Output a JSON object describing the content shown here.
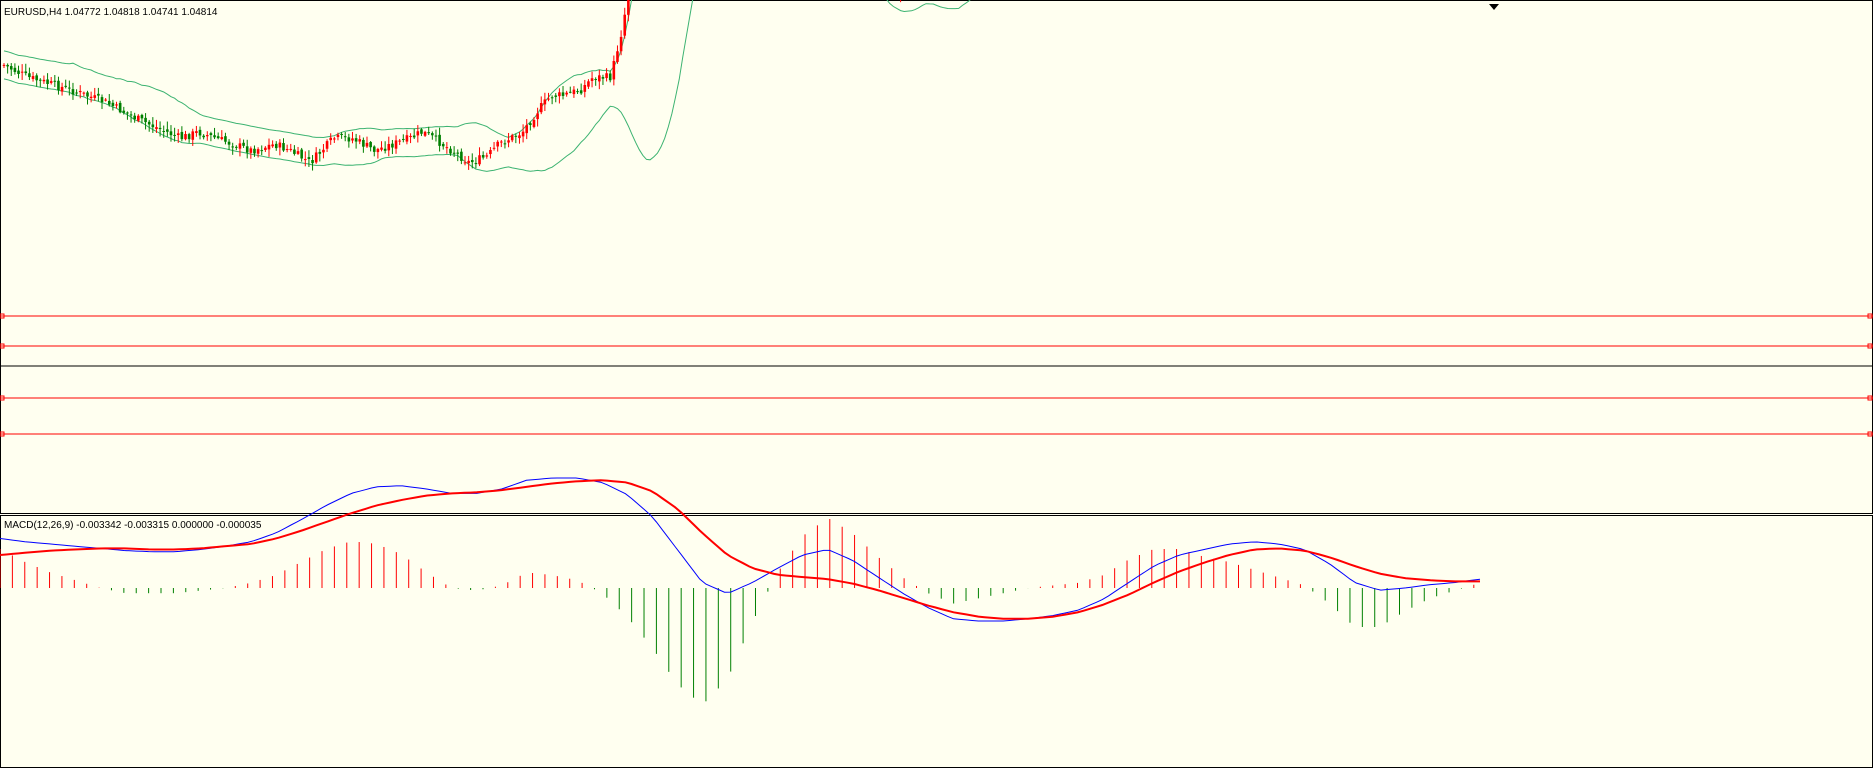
{
  "colors": {
    "background": "#fffff0",
    "bull": "#ff0000",
    "bear": "#008000",
    "bollinger": "#3cb371",
    "level_lines": "#ff0000",
    "price_line": "#000000",
    "macd_line": "#0000ff",
    "signal_line": "#ff0000",
    "hist_pos": "#ff0000",
    "hist_neg": "#008000"
  },
  "chart_data": [
    {
      "type": "candlestick",
      "title": "EURUSD,H4  1.04772 1.04818 1.04741 1.04814",
      "symbol": "EURUSD",
      "timeframe": "H4",
      "ohlc_last": {
        "open": 1.04772,
        "high": 1.04818,
        "low": 1.04741,
        "close": 1.04814
      },
      "indicators": [
        "Bollinger Bands"
      ],
      "grid": false,
      "horizontal_levels": [
        "level-1",
        "level-2",
        "level-3",
        "level-4"
      ],
      "current_price_line": true,
      "path_points": [
        [
          0,
          0
        ],
        [
          8,
          -2
        ],
        [
          22,
          -4
        ],
        [
          34,
          -6
        ],
        [
          46,
          -9
        ],
        [
          60,
          -12
        ],
        [
          66,
          -11
        ],
        [
          72,
          -12
        ],
        [
          84,
          -14
        ],
        [
          92,
          -13
        ],
        [
          97,
          -14
        ],
        [
          104,
          -16
        ],
        [
          108,
          -14
        ],
        [
          112,
          -12
        ],
        [
          118,
          -12
        ],
        [
          122,
          -13
        ],
        [
          126,
          -14
        ],
        [
          132,
          -13
        ],
        [
          138,
          -12
        ],
        [
          142,
          -11
        ],
        [
          146,
          -12
        ],
        [
          152,
          -14
        ],
        [
          158,
          -16
        ],
        [
          164,
          -15
        ],
        [
          168,
          -13
        ],
        [
          176,
          -11
        ],
        [
          182,
          -7
        ],
        [
          186,
          -5
        ],
        [
          190,
          -5
        ],
        [
          196,
          -4
        ],
        [
          200,
          -2
        ],
        [
          206,
          -2
        ],
        [
          210,
          6
        ],
        [
          214,
          18
        ],
        [
          218,
          28
        ],
        [
          222,
          30
        ],
        [
          226,
          28
        ],
        [
          230,
          24
        ],
        [
          236,
          20
        ],
        [
          240,
          21
        ],
        [
          244,
          19
        ],
        [
          248,
          17
        ],
        [
          252,
          19
        ],
        [
          256,
          21
        ],
        [
          260,
          24
        ],
        [
          264,
          26
        ],
        [
          268,
          26
        ],
        [
          272,
          27
        ],
        [
          276,
          25
        ],
        [
          280,
          23
        ],
        [
          284,
          21
        ],
        [
          288,
          19
        ],
        [
          292,
          16
        ],
        [
          296,
          14
        ],
        [
          300,
          12
        ],
        [
          304,
          11
        ],
        [
          308,
          13
        ],
        [
          312,
          16
        ],
        [
          316,
          18
        ],
        [
          320,
          19
        ],
        [
          324,
          20
        ],
        [
          328,
          22
        ],
        [
          332,
          24
        ],
        [
          336,
          25
        ],
        [
          340,
          24
        ],
        [
          344,
          23
        ],
        [
          348,
          24
        ],
        [
          352,
          26
        ],
        [
          356,
          27
        ],
        [
          360,
          28
        ],
        [
          364,
          29
        ],
        [
          368,
          28
        ],
        [
          372,
          29
        ],
        [
          376,
          30
        ],
        [
          380,
          31
        ],
        [
          384,
          32
        ],
        [
          388,
          31
        ],
        [
          392,
          33
        ],
        [
          396,
          35
        ],
        [
          400,
          37
        ],
        [
          404,
          38
        ],
        [
          408,
          38
        ]
      ],
      "bands_note": ""
    },
    {
      "type": "macd",
      "title": "MACD(12,26,9) -0.003342 -0.003315 0.000000 -0.000035",
      "params": [
        12,
        26,
        9
      ],
      "values": {
        "macd": -0.003342,
        "signal": -0.003315,
        "histogram_1": 0.0,
        "histogram_2": -3.5e-05
      },
      "series": [
        {
          "key": "macd",
          "values": [
            0.45,
            0.42,
            0.4,
            0.38,
            0.36,
            0.34,
            0.33,
            0.33,
            0.35,
            0.38,
            0.42,
            0.5,
            0.62,
            0.75,
            0.86,
            0.92,
            0.93,
            0.9,
            0.86,
            0.86,
            0.9,
            0.98,
            1.0,
            1.0,
            0.96,
            0.85,
            0.65,
            0.35,
            0.05,
            -0.05,
            0.05,
            0.18,
            0.3,
            0.35,
            0.25,
            0.1,
            -0.05,
            -0.18,
            -0.28,
            -0.3,
            -0.3,
            -0.28,
            -0.25,
            -0.2,
            -0.1,
            0.05,
            0.2,
            0.3,
            0.35,
            0.4,
            0.42,
            0.4,
            0.35,
            0.22,
            0.05,
            -0.02,
            0.0,
            0.03,
            0.05,
            0.08
          ]
        },
        {
          "key": "signal",
          "values": [
            0.3,
            0.32,
            0.34,
            0.35,
            0.36,
            0.36,
            0.35,
            0.35,
            0.36,
            0.38,
            0.4,
            0.45,
            0.52,
            0.6,
            0.68,
            0.75,
            0.8,
            0.84,
            0.86,
            0.87,
            0.89,
            0.92,
            0.95,
            0.97,
            0.98,
            0.96,
            0.88,
            0.72,
            0.5,
            0.3,
            0.18,
            0.12,
            0.1,
            0.08,
            0.04,
            -0.02,
            -0.09,
            -0.16,
            -0.22,
            -0.26,
            -0.28,
            -0.28,
            -0.26,
            -0.22,
            -0.15,
            -0.06,
            0.05,
            0.15,
            0.23,
            0.3,
            0.35,
            0.36,
            0.34,
            0.28,
            0.2,
            0.13,
            0.09,
            0.07,
            0.06,
            0.06
          ]
        }
      ],
      "grid": false
    }
  ]
}
